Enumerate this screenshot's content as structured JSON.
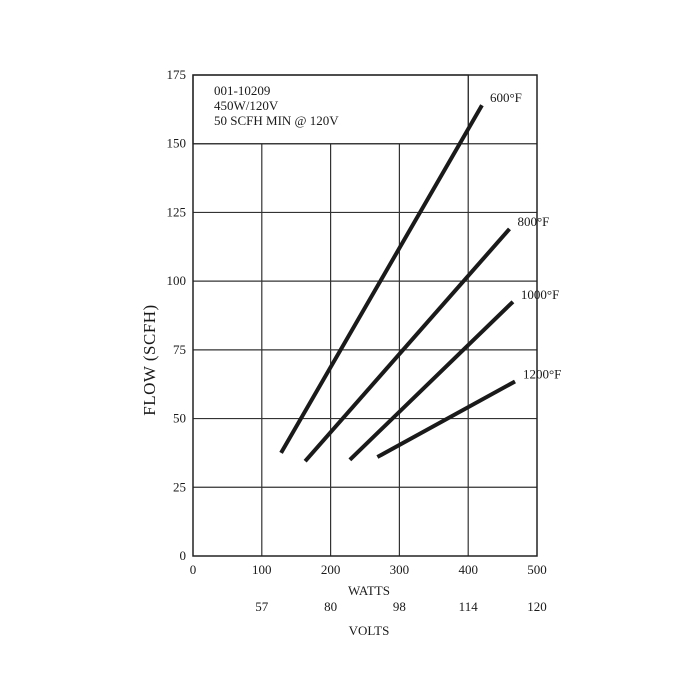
{
  "chart_data": {
    "type": "line",
    "x_ticks": [
      0,
      100,
      200,
      300,
      400,
      500
    ],
    "y_ticks": [
      0,
      25,
      50,
      75,
      100,
      125,
      150,
      175
    ],
    "xlim": [
      0,
      500
    ],
    "ylim": [
      0,
      175
    ],
    "xlabel": "WATTS",
    "ylabel": "FLOW (SCFH)",
    "secondary_x": {
      "label": "VOLTS",
      "ticks": [
        {
          "watts": 100,
          "label": "57"
        },
        {
          "watts": 200,
          "label": "80"
        },
        {
          "watts": 300,
          "label": "98"
        },
        {
          "watts": 400,
          "label": "114"
        },
        {
          "watts": 500,
          "label": "120"
        }
      ]
    },
    "grid": true,
    "annotations": [
      "001-10209",
      "450W/120V",
      "50 SCFH MIN @ 120V"
    ],
    "series": [
      {
        "name": "600°F",
        "x": [
          128,
          420
        ],
        "y": [
          37.5,
          164
        ]
      },
      {
        "name": "800°F",
        "x": [
          163,
          460
        ],
        "y": [
          34.5,
          119
        ]
      },
      {
        "name": "1000°F",
        "x": [
          228,
          465
        ],
        "y": [
          35,
          92.5
        ]
      },
      {
        "name": "1200°F",
        "x": [
          268,
          468
        ],
        "y": [
          36,
          63.5
        ]
      }
    ]
  }
}
